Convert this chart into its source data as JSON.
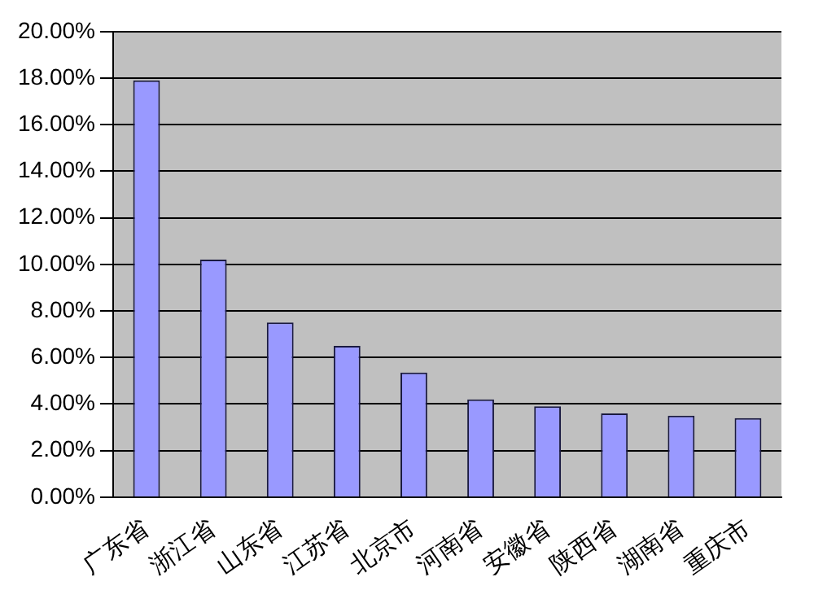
{
  "chart_data": {
    "type": "bar",
    "categories": [
      "广东省",
      "浙江省",
      "山东省",
      "江苏省",
      "北京市",
      "河南省",
      "安徽省",
      "陕西省",
      "湖南省",
      "重庆市"
    ],
    "values": [
      17.9,
      10.2,
      7.5,
      6.5,
      5.35,
      4.2,
      3.9,
      3.6,
      3.5,
      3.4
    ],
    "color": "#9999ff",
    "ylim": [
      0,
      20
    ],
    "yticks": [
      {
        "value": 0,
        "label": "0.00%"
      },
      {
        "value": 2,
        "label": "2.00%"
      },
      {
        "value": 4,
        "label": "4.00%"
      },
      {
        "value": 6,
        "label": "6.00%"
      },
      {
        "value": 8,
        "label": "8.00%"
      },
      {
        "value": 10,
        "label": "10.00%"
      },
      {
        "value": 12,
        "label": "12.00%"
      },
      {
        "value": 14,
        "label": "14.00%"
      },
      {
        "value": 16,
        "label": "16.00%"
      },
      {
        "value": 18,
        "label": "18.00%"
      },
      {
        "value": 20,
        "label": "20.00%"
      }
    ],
    "grid": "y",
    "legend": false
  }
}
